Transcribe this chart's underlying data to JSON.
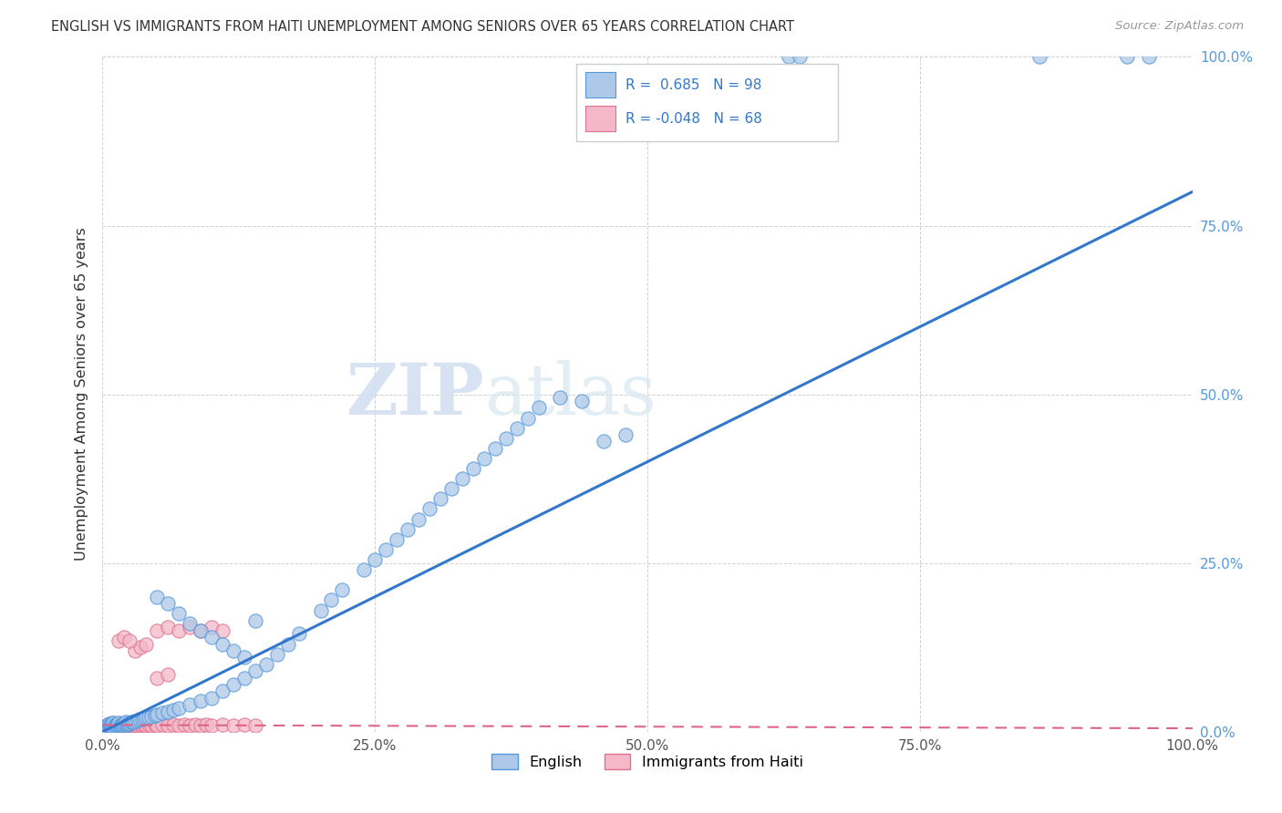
{
  "title": "ENGLISH VS IMMIGRANTS FROM HAITI UNEMPLOYMENT AMONG SENIORS OVER 65 YEARS CORRELATION CHART",
  "source": "Source: ZipAtlas.com",
  "ylabel": "Unemployment Among Seniors over 65 years",
  "xlim": [
    0,
    1.0
  ],
  "ylim": [
    0,
    1.0
  ],
  "xtick_positions": [
    0.0,
    0.25,
    0.5,
    0.75,
    1.0
  ],
  "xticklabels": [
    "0.0%",
    "25.0%",
    "50.0%",
    "75.0%",
    "100.0%"
  ],
  "ytick_positions": [
    0.0,
    0.25,
    0.5,
    0.75,
    1.0
  ],
  "yticklabels_right": [
    "0.0%",
    "25.0%",
    "50.0%",
    "75.0%",
    "100.0%"
  ],
  "english_R": 0.685,
  "english_N": 98,
  "haiti_R": -0.048,
  "haiti_N": 68,
  "english_color": "#adc8e8",
  "english_edge_color": "#5599dd",
  "haiti_color": "#f4b8c8",
  "haiti_edge_color": "#e07090",
  "english_line_color": "#3377cc",
  "haiti_line_color": "#dd6688",
  "watermark_zip": "ZIP",
  "watermark_atlas": "atlas",
  "legend_english_label": "English",
  "legend_haiti_label": "Immigrants from Haiti",
  "eng_line_x0": 0.0,
  "eng_line_y0": 0.0,
  "eng_line_x1": 1.0,
  "eng_line_y1": 0.8,
  "haiti_line_x0": 0.0,
  "haiti_line_y0": 0.01,
  "haiti_line_x1": 1.0,
  "haiti_line_y1": 0.005,
  "english_scatter_x": [
    0.001,
    0.002,
    0.003,
    0.004,
    0.005,
    0.005,
    0.006,
    0.006,
    0.007,
    0.007,
    0.008,
    0.008,
    0.009,
    0.009,
    0.01,
    0.01,
    0.011,
    0.012,
    0.013,
    0.014,
    0.015,
    0.016,
    0.017,
    0.018,
    0.019,
    0.02,
    0.021,
    0.022,
    0.023,
    0.024,
    0.025,
    0.026,
    0.027,
    0.028,
    0.03,
    0.032,
    0.034,
    0.036,
    0.038,
    0.04,
    0.042,
    0.045,
    0.048,
    0.05,
    0.055,
    0.06,
    0.065,
    0.07,
    0.08,
    0.09,
    0.1,
    0.11,
    0.12,
    0.13,
    0.14,
    0.15,
    0.16,
    0.17,
    0.18,
    0.2,
    0.21,
    0.22,
    0.24,
    0.25,
    0.26,
    0.27,
    0.28,
    0.29,
    0.3,
    0.31,
    0.32,
    0.33,
    0.34,
    0.35,
    0.36,
    0.37,
    0.38,
    0.39,
    0.4,
    0.42,
    0.44,
    0.46,
    0.48,
    0.05,
    0.06,
    0.07,
    0.08,
    0.09,
    0.1,
    0.11,
    0.12,
    0.13,
    0.14,
    0.63,
    0.64,
    0.86,
    0.94,
    0.96
  ],
  "english_scatter_y": [
    0.005,
    0.008,
    0.003,
    0.007,
    0.01,
    0.004,
    0.008,
    0.012,
    0.006,
    0.01,
    0.005,
    0.009,
    0.007,
    0.011,
    0.008,
    0.013,
    0.009,
    0.01,
    0.011,
    0.012,
    0.013,
    0.009,
    0.01,
    0.011,
    0.012,
    0.013,
    0.014,
    0.01,
    0.011,
    0.012,
    0.013,
    0.015,
    0.014,
    0.015,
    0.016,
    0.017,
    0.018,
    0.019,
    0.02,
    0.021,
    0.022,
    0.023,
    0.024,
    0.025,
    0.028,
    0.03,
    0.032,
    0.035,
    0.04,
    0.045,
    0.05,
    0.06,
    0.07,
    0.08,
    0.09,
    0.1,
    0.115,
    0.13,
    0.145,
    0.18,
    0.195,
    0.21,
    0.24,
    0.255,
    0.27,
    0.285,
    0.3,
    0.315,
    0.33,
    0.345,
    0.36,
    0.375,
    0.39,
    0.405,
    0.42,
    0.435,
    0.45,
    0.465,
    0.48,
    0.495,
    0.49,
    0.43,
    0.44,
    0.2,
    0.19,
    0.175,
    0.16,
    0.15,
    0.14,
    0.13,
    0.12,
    0.11,
    0.165,
    1.0,
    1.0,
    1.0,
    1.0,
    1.0
  ],
  "haiti_scatter_x": [
    0.001,
    0.002,
    0.003,
    0.004,
    0.005,
    0.005,
    0.006,
    0.006,
    0.007,
    0.007,
    0.008,
    0.008,
    0.009,
    0.009,
    0.01,
    0.01,
    0.011,
    0.012,
    0.013,
    0.014,
    0.015,
    0.016,
    0.017,
    0.018,
    0.02,
    0.022,
    0.024,
    0.026,
    0.028,
    0.03,
    0.032,
    0.034,
    0.036,
    0.038,
    0.04,
    0.042,
    0.045,
    0.048,
    0.05,
    0.055,
    0.06,
    0.065,
    0.07,
    0.075,
    0.08,
    0.085,
    0.09,
    0.095,
    0.1,
    0.11,
    0.12,
    0.13,
    0.14,
    0.05,
    0.06,
    0.07,
    0.08,
    0.09,
    0.1,
    0.11,
    0.05,
    0.06,
    0.03,
    0.035,
    0.04,
    0.015,
    0.02,
    0.025
  ],
  "haiti_scatter_y": [
    0.005,
    0.008,
    0.003,
    0.007,
    0.01,
    0.004,
    0.008,
    0.012,
    0.006,
    0.01,
    0.005,
    0.009,
    0.007,
    0.011,
    0.008,
    0.013,
    0.009,
    0.01,
    0.011,
    0.012,
    0.01,
    0.011,
    0.009,
    0.01,
    0.009,
    0.01,
    0.009,
    0.01,
    0.009,
    0.01,
    0.009,
    0.01,
    0.009,
    0.01,
    0.009,
    0.01,
    0.009,
    0.01,
    0.009,
    0.01,
    0.009,
    0.01,
    0.009,
    0.01,
    0.009,
    0.01,
    0.009,
    0.01,
    0.009,
    0.01,
    0.009,
    0.01,
    0.009,
    0.15,
    0.155,
    0.15,
    0.155,
    0.15,
    0.155,
    0.15,
    0.08,
    0.085,
    0.12,
    0.125,
    0.13,
    0.135,
    0.14,
    0.135
  ]
}
